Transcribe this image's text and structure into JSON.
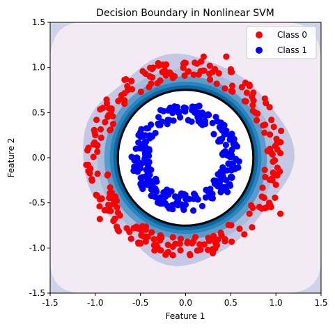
{
  "chart_data": {
    "type": "scatter",
    "title": "Decision Boundary in Nonlinear SVM",
    "xlabel": "Feature 1",
    "ylabel": "Feature 2",
    "xlim": [
      -1.5,
      1.5
    ],
    "ylim": [
      -1.5,
      1.5
    ],
    "xticks": [
      "-1.5",
      "-1.0",
      "-0.5",
      "0.0",
      "0.5",
      "1.0",
      "1.5"
    ],
    "yticks": [
      "-1.5",
      "-1.0",
      "-0.5",
      "0.0",
      "0.5",
      "1.0",
      "1.5"
    ],
    "grid": false,
    "legend_position": "top-right",
    "decision_boundary_radius": 0.75,
    "series": [
      {
        "name": "Class 0",
        "color": "#ff0000",
        "radius_range": [
          0.88,
          1.1
        ],
        "count": 250,
        "points": [
          [
            0.0,
            1.05
          ],
          [
            0.2,
            1.12
          ],
          [
            -0.3,
            1.02
          ],
          [
            0.5,
            0.98
          ],
          [
            -0.6,
            0.85
          ],
          [
            0.75,
            0.72
          ],
          [
            -0.85,
            0.55
          ],
          [
            0.95,
            0.42
          ],
          [
            -1.0,
            0.25
          ],
          [
            1.05,
            0.05
          ],
          [
            -1.08,
            -0.08
          ],
          [
            1.0,
            -0.3
          ],
          [
            -0.98,
            -0.42
          ],
          [
            0.9,
            -0.55
          ],
          [
            -0.8,
            -0.7
          ],
          [
            0.65,
            -0.85
          ],
          [
            -0.5,
            -0.95
          ],
          [
            0.3,
            -1.02
          ],
          [
            -0.2,
            -1.05
          ],
          [
            0.05,
            -1.08
          ],
          [
            0.45,
            1.12
          ],
          [
            -0.95,
            -0.68
          ],
          [
            1.05,
            -0.62
          ],
          [
            -1.1,
            -0.08
          ]
        ]
      },
      {
        "name": "Class 1",
        "color": "#0000ff",
        "radius_range": [
          0.4,
          0.6
        ],
        "count": 250,
        "points": [
          [
            0.0,
            0.55
          ],
          [
            0.25,
            0.48
          ],
          [
            -0.3,
            0.45
          ],
          [
            0.45,
            0.3
          ],
          [
            -0.45,
            0.25
          ],
          [
            0.5,
            0.05
          ],
          [
            -0.52,
            -0.05
          ],
          [
            0.45,
            -0.25
          ],
          [
            -0.42,
            -0.3
          ],
          [
            0.3,
            -0.45
          ],
          [
            -0.25,
            -0.48
          ],
          [
            0.0,
            -0.52
          ],
          [
            0.1,
            0.5
          ],
          [
            -0.1,
            -0.5
          ],
          [
            0.55,
            0.15
          ],
          [
            -0.55,
            0.1
          ]
        ]
      }
    ],
    "decision_function_levels": [
      {
        "level": 1,
        "color": "#cfd2e8"
      },
      {
        "level": 2,
        "color": "#f2ebf4"
      },
      {
        "level": 3,
        "color": "#c4c8e4"
      },
      {
        "level": 4,
        "color": "#a9bcdb"
      },
      {
        "level": 5,
        "color": "#5a9bcb"
      },
      {
        "level": 6,
        "color": "#2a84bd"
      },
      {
        "level": 7,
        "color": "#0b67a3"
      },
      {
        "level": 8,
        "color": "#045a8d"
      },
      {
        "level": 9,
        "color": "#ffffff"
      }
    ]
  }
}
